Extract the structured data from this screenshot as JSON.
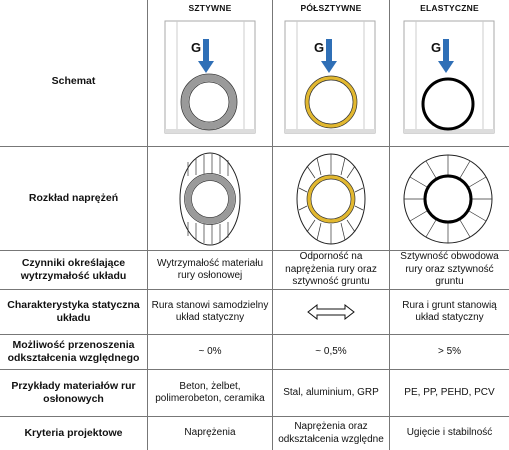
{
  "columns": {
    "c1": "SZTYWNE",
    "c2": "PÓŁSZTYWNE",
    "c3": "ELASTYCZNE"
  },
  "load_symbol": "G",
  "colors": {
    "arrow": "#2f6fb6",
    "rigid_ring": "#9a9a9a",
    "semi_ring": "#e2b830",
    "flex_ring": "#000000",
    "grid": "#777777"
  },
  "rows": [
    {
      "label": "Schemat"
    },
    {
      "label": "Rozkład naprężeń"
    },
    {
      "label": "Czynniki określające wytrzymałość układu",
      "c1": "Wytrzymałość materiału rury osłonowej",
      "c2": "Odporność na naprężenia rury oraz sztywność gruntu",
      "c3": "Sztywność obwodowa rury oraz sztywność gruntu"
    },
    {
      "label": "Charakterystyka statyczna układu",
      "c1": "Rura stanowi samodzielny układ statyczny",
      "c2": "",
      "c3": "Rura i grunt stanowią układ statyczny",
      "c2_icon": "double-arrow-icon"
    },
    {
      "label": "Możliwość przenoszenia odkształcenia względnego",
      "c1": "~ 0%",
      "c2": "~ 0,5%",
      "c3": "> 5%"
    },
    {
      "label": "Przykłady materiałów rur osłonowych",
      "c1": "Beton, żelbet, polimerobeton, ceramika",
      "c2": "Stal, aluminium, GRP",
      "c3": "PE, PP, PEHD, PCV"
    },
    {
      "label": "Kryteria projektowe",
      "c1": "Naprężenia",
      "c2": "Naprężenia oraz odkształcenia względne",
      "c3": "Ugięcie i stabilność"
    }
  ]
}
